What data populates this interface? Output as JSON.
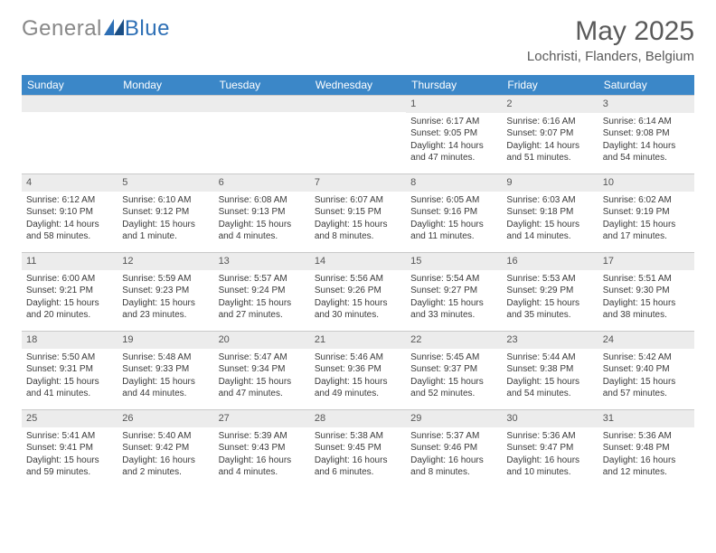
{
  "logo": {
    "text1": "General",
    "text2": "Blue"
  },
  "title": "May 2025",
  "location": "Lochristi, Flanders, Belgium",
  "header_bg": "#3b87c8",
  "weekdays": [
    "Sunday",
    "Monday",
    "Tuesday",
    "Wednesday",
    "Thursday",
    "Friday",
    "Saturday"
  ],
  "weeks": [
    [
      {
        "empty": true
      },
      {
        "empty": true
      },
      {
        "empty": true
      },
      {
        "empty": true
      },
      {
        "num": "1",
        "sunrise": "Sunrise: 6:17 AM",
        "sunset": "Sunset: 9:05 PM",
        "daylight": "Daylight: 14 hours and 47 minutes."
      },
      {
        "num": "2",
        "sunrise": "Sunrise: 6:16 AM",
        "sunset": "Sunset: 9:07 PM",
        "daylight": "Daylight: 14 hours and 51 minutes."
      },
      {
        "num": "3",
        "sunrise": "Sunrise: 6:14 AM",
        "sunset": "Sunset: 9:08 PM",
        "daylight": "Daylight: 14 hours and 54 minutes."
      }
    ],
    [
      {
        "num": "4",
        "sunrise": "Sunrise: 6:12 AM",
        "sunset": "Sunset: 9:10 PM",
        "daylight": "Daylight: 14 hours and 58 minutes."
      },
      {
        "num": "5",
        "sunrise": "Sunrise: 6:10 AM",
        "sunset": "Sunset: 9:12 PM",
        "daylight": "Daylight: 15 hours and 1 minute."
      },
      {
        "num": "6",
        "sunrise": "Sunrise: 6:08 AM",
        "sunset": "Sunset: 9:13 PM",
        "daylight": "Daylight: 15 hours and 4 minutes."
      },
      {
        "num": "7",
        "sunrise": "Sunrise: 6:07 AM",
        "sunset": "Sunset: 9:15 PM",
        "daylight": "Daylight: 15 hours and 8 minutes."
      },
      {
        "num": "8",
        "sunrise": "Sunrise: 6:05 AM",
        "sunset": "Sunset: 9:16 PM",
        "daylight": "Daylight: 15 hours and 11 minutes."
      },
      {
        "num": "9",
        "sunrise": "Sunrise: 6:03 AM",
        "sunset": "Sunset: 9:18 PM",
        "daylight": "Daylight: 15 hours and 14 minutes."
      },
      {
        "num": "10",
        "sunrise": "Sunrise: 6:02 AM",
        "sunset": "Sunset: 9:19 PM",
        "daylight": "Daylight: 15 hours and 17 minutes."
      }
    ],
    [
      {
        "num": "11",
        "sunrise": "Sunrise: 6:00 AM",
        "sunset": "Sunset: 9:21 PM",
        "daylight": "Daylight: 15 hours and 20 minutes."
      },
      {
        "num": "12",
        "sunrise": "Sunrise: 5:59 AM",
        "sunset": "Sunset: 9:23 PM",
        "daylight": "Daylight: 15 hours and 23 minutes."
      },
      {
        "num": "13",
        "sunrise": "Sunrise: 5:57 AM",
        "sunset": "Sunset: 9:24 PM",
        "daylight": "Daylight: 15 hours and 27 minutes."
      },
      {
        "num": "14",
        "sunrise": "Sunrise: 5:56 AM",
        "sunset": "Sunset: 9:26 PM",
        "daylight": "Daylight: 15 hours and 30 minutes."
      },
      {
        "num": "15",
        "sunrise": "Sunrise: 5:54 AM",
        "sunset": "Sunset: 9:27 PM",
        "daylight": "Daylight: 15 hours and 33 minutes."
      },
      {
        "num": "16",
        "sunrise": "Sunrise: 5:53 AM",
        "sunset": "Sunset: 9:29 PM",
        "daylight": "Daylight: 15 hours and 35 minutes."
      },
      {
        "num": "17",
        "sunrise": "Sunrise: 5:51 AM",
        "sunset": "Sunset: 9:30 PM",
        "daylight": "Daylight: 15 hours and 38 minutes."
      }
    ],
    [
      {
        "num": "18",
        "sunrise": "Sunrise: 5:50 AM",
        "sunset": "Sunset: 9:31 PM",
        "daylight": "Daylight: 15 hours and 41 minutes."
      },
      {
        "num": "19",
        "sunrise": "Sunrise: 5:48 AM",
        "sunset": "Sunset: 9:33 PM",
        "daylight": "Daylight: 15 hours and 44 minutes."
      },
      {
        "num": "20",
        "sunrise": "Sunrise: 5:47 AM",
        "sunset": "Sunset: 9:34 PM",
        "daylight": "Daylight: 15 hours and 47 minutes."
      },
      {
        "num": "21",
        "sunrise": "Sunrise: 5:46 AM",
        "sunset": "Sunset: 9:36 PM",
        "daylight": "Daylight: 15 hours and 49 minutes."
      },
      {
        "num": "22",
        "sunrise": "Sunrise: 5:45 AM",
        "sunset": "Sunset: 9:37 PM",
        "daylight": "Daylight: 15 hours and 52 minutes."
      },
      {
        "num": "23",
        "sunrise": "Sunrise: 5:44 AM",
        "sunset": "Sunset: 9:38 PM",
        "daylight": "Daylight: 15 hours and 54 minutes."
      },
      {
        "num": "24",
        "sunrise": "Sunrise: 5:42 AM",
        "sunset": "Sunset: 9:40 PM",
        "daylight": "Daylight: 15 hours and 57 minutes."
      }
    ],
    [
      {
        "num": "25",
        "sunrise": "Sunrise: 5:41 AM",
        "sunset": "Sunset: 9:41 PM",
        "daylight": "Daylight: 15 hours and 59 minutes."
      },
      {
        "num": "26",
        "sunrise": "Sunrise: 5:40 AM",
        "sunset": "Sunset: 9:42 PM",
        "daylight": "Daylight: 16 hours and 2 minutes."
      },
      {
        "num": "27",
        "sunrise": "Sunrise: 5:39 AM",
        "sunset": "Sunset: 9:43 PM",
        "daylight": "Daylight: 16 hours and 4 minutes."
      },
      {
        "num": "28",
        "sunrise": "Sunrise: 5:38 AM",
        "sunset": "Sunset: 9:45 PM",
        "daylight": "Daylight: 16 hours and 6 minutes."
      },
      {
        "num": "29",
        "sunrise": "Sunrise: 5:37 AM",
        "sunset": "Sunset: 9:46 PM",
        "daylight": "Daylight: 16 hours and 8 minutes."
      },
      {
        "num": "30",
        "sunrise": "Sunrise: 5:36 AM",
        "sunset": "Sunset: 9:47 PM",
        "daylight": "Daylight: 16 hours and 10 minutes."
      },
      {
        "num": "31",
        "sunrise": "Sunrise: 5:36 AM",
        "sunset": "Sunset: 9:48 PM",
        "daylight": "Daylight: 16 hours and 12 minutes."
      }
    ]
  ]
}
